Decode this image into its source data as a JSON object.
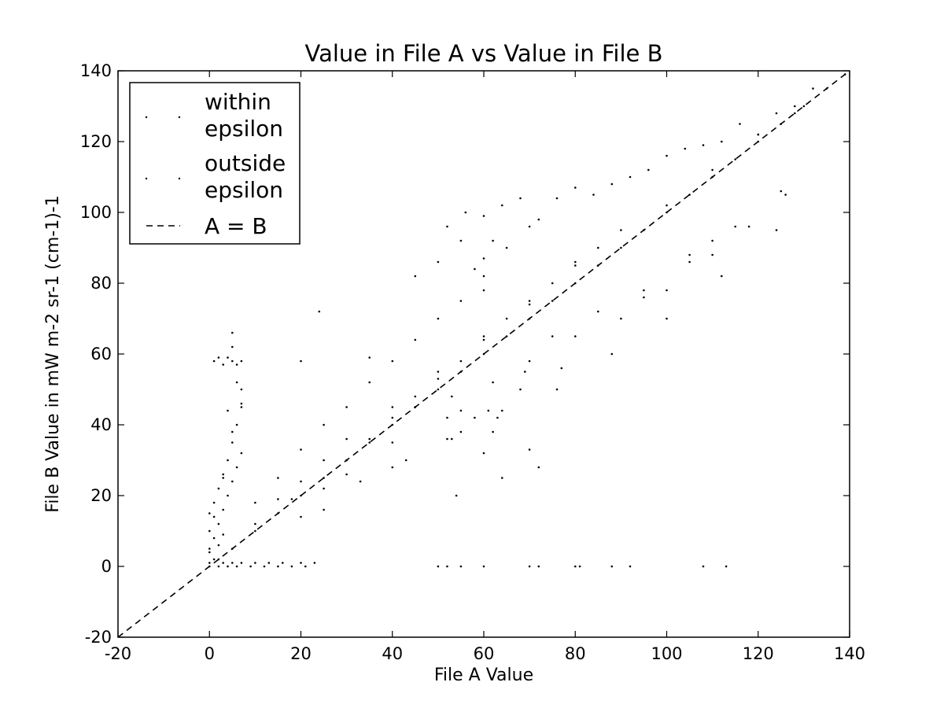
{
  "chart_data": {
    "type": "scatter",
    "title": "Value in File A vs Value in File B",
    "xlabel": "File A Value",
    "ylabel": "File B Value in mW m-2 sr-1 (cm-1)-1",
    "xlim": [
      -20,
      140
    ],
    "ylim": [
      -20,
      140
    ],
    "xticks": [
      "-20",
      "0",
      "20",
      "40",
      "60",
      "80",
      "100",
      "120",
      "140"
    ],
    "yticks": [
      "-20",
      "0",
      "20",
      "40",
      "60",
      "80",
      "100",
      "120",
      "140"
    ],
    "grid": false,
    "legend_position": "top-left",
    "series": [
      {
        "name": "within epsilon",
        "marker": "point",
        "color": "#000000",
        "x": [
          2,
          5,
          10,
          15,
          20,
          25,
          30,
          35,
          40,
          45,
          50,
          55,
          60,
          65,
          70,
          75,
          80,
          85,
          90,
          95,
          100,
          105,
          110,
          115,
          120,
          125,
          130,
          135,
          139
        ],
        "y": [
          2,
          5,
          10,
          15,
          20,
          25,
          30,
          35,
          40,
          45,
          50,
          55,
          60,
          65,
          70,
          75,
          80,
          85,
          90,
          95,
          100,
          105,
          110,
          115,
          120,
          125,
          130,
          135,
          139
        ]
      },
      {
        "name": "outside epsilon",
        "marker": "point",
        "color": "#000000",
        "x": [
          0,
          1,
          2,
          3,
          4,
          5,
          6,
          7,
          1,
          2,
          3,
          4,
          5,
          6,
          7,
          0,
          1,
          2,
          3,
          4,
          5,
          6,
          7,
          0,
          1,
          3,
          5,
          7,
          0,
          2,
          4,
          6,
          5,
          7,
          1,
          3,
          5,
          10,
          15,
          20,
          25,
          20,
          30,
          35,
          35,
          40,
          45,
          50,
          55,
          60,
          60,
          58,
          62,
          60,
          55,
          65,
          70,
          45,
          50,
          20,
          25,
          30,
          35,
          40,
          45,
          50,
          55,
          60,
          65,
          70,
          75,
          80,
          85,
          15,
          20,
          25,
          30,
          40,
          50,
          60,
          70,
          80,
          90,
          100,
          110,
          120,
          10,
          18,
          30,
          40,
          55,
          62,
          70,
          80,
          95,
          105,
          115,
          125,
          40,
          52,
          64,
          76,
          88,
          100,
          112,
          124,
          24,
          52,
          56,
          60,
          64,
          68,
          72,
          76,
          80,
          84,
          88,
          92,
          96,
          100,
          104,
          108,
          112,
          116,
          120,
          124,
          128,
          132,
          52,
          61,
          69,
          75,
          85,
          95,
          105,
          110,
          128,
          25,
          33,
          43,
          53,
          63,
          68,
          77,
          90,
          100,
          110,
          118,
          126,
          54,
          64,
          70,
          72,
          45,
          53,
          55,
          58,
          60,
          62,
          0,
          3,
          5,
          7,
          10,
          13,
          16,
          20,
          23,
          0,
          2,
          4,
          6,
          9,
          12,
          15,
          18,
          21,
          50,
          52,
          55,
          60,
          70,
          72,
          80,
          81,
          88,
          92,
          108,
          113
        ],
        "y": [
          15,
          18,
          22,
          26,
          30,
          35,
          40,
          45,
          58,
          59,
          57,
          59,
          58,
          57,
          58,
          5,
          8,
          12,
          16,
          20,
          24,
          28,
          32,
          10,
          14,
          25,
          38,
          50,
          4,
          6,
          44,
          52,
          66,
          46,
          2,
          9,
          62,
          18,
          25,
          33,
          40,
          58,
          45,
          52,
          59,
          58,
          64,
          70,
          75,
          82,
          78,
          84,
          92,
          87,
          92,
          90,
          96,
          82,
          86,
          14,
          22,
          30,
          36,
          42,
          48,
          53,
          58,
          64,
          70,
          74,
          80,
          86,
          90,
          19,
          24,
          30,
          36,
          45,
          55,
          65,
          75,
          85,
          95,
          102,
          112,
          122,
          12,
          19,
          26,
          35,
          44,
          52,
          58,
          65,
          76,
          86,
          96,
          106,
          28,
          36,
          44,
          50,
          60,
          70,
          82,
          95,
          72,
          96,
          100,
          99,
          102,
          104,
          98,
          104,
          107,
          105,
          108,
          110,
          112,
          116,
          118,
          119,
          120,
          125,
          122,
          128,
          130,
          135,
          42,
          44,
          55,
          65,
          72,
          78,
          88,
          92,
          128,
          16,
          24,
          30,
          36,
          42,
          50,
          56,
          70,
          78,
          88,
          96,
          105,
          20,
          25,
          33,
          28,
          45,
          48,
          38,
          42,
          32,
          38,
          1,
          1,
          1,
          1,
          1,
          1,
          1,
          1,
          1,
          0,
          0,
          0,
          0,
          0,
          0,
          0,
          0,
          0,
          0,
          0,
          0,
          0,
          0,
          0,
          0,
          0,
          0,
          0,
          0,
          0
        ]
      },
      {
        "name": "A = B",
        "line": "dashed",
        "color": "#000000",
        "x": [
          -20,
          140
        ],
        "y": [
          -20,
          140
        ]
      }
    ],
    "legend": [
      "within epsilon",
      "outside epsilon",
      "A = B"
    ]
  }
}
